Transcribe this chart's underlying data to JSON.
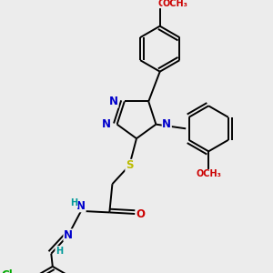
{
  "bg_color": "#ececec",
  "colors": {
    "C": "#000000",
    "N": "#0000cc",
    "O": "#cc0000",
    "S": "#bbbb00",
    "Cl": "#00aa00",
    "H": "#009999",
    "bond": "#000000"
  },
  "bond_lw": 1.4,
  "dbo": 0.012,
  "fs": 8.5,
  "fss": 7.0,
  "xlim": [
    0.05,
    0.95
  ],
  "ylim": [
    0.02,
    0.98
  ]
}
